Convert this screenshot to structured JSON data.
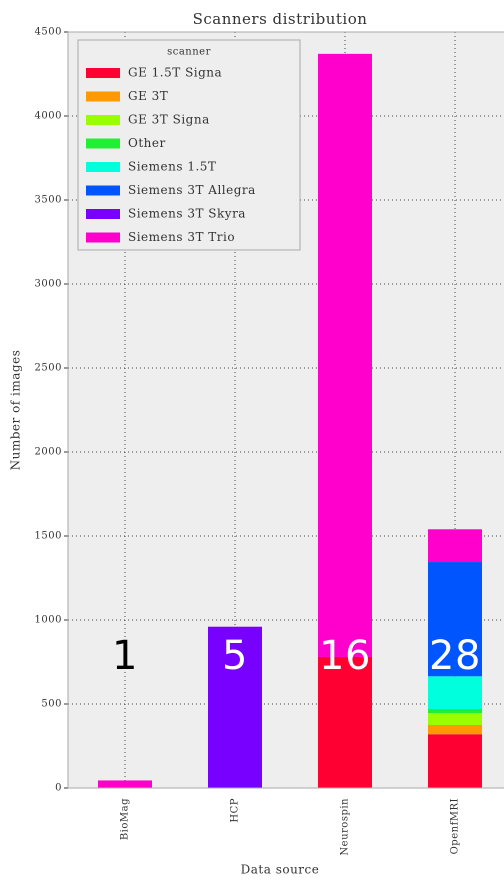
{
  "chart_data": {
    "type": "stacked_bar",
    "title": "Scanners distribution",
    "xlabel": "Data source",
    "ylabel": "Number of images",
    "categories": [
      "BioMag",
      "HCP",
      "Neurospin",
      "OpenfMRI"
    ],
    "legend_title": "scanner",
    "legend": "upper left",
    "grid": true,
    "ylim": [
      0,
      4500
    ],
    "yticks": [
      0,
      500,
      1000,
      1500,
      2000,
      2500,
      3000,
      3500,
      4000,
      4500
    ],
    "series": [
      {
        "name": "GE 1.5T Signa",
        "color": "#ff0033",
        "values": [
          0,
          0,
          780,
          320
        ]
      },
      {
        "name": "GE 3T",
        "color": "#ff9900",
        "values": [
          0,
          0,
          0,
          55
        ]
      },
      {
        "name": "GE 3T Signa",
        "color": "#99ff00",
        "values": [
          0,
          0,
          0,
          70
        ]
      },
      {
        "name": "Other",
        "color": "#22ee33",
        "values": [
          0,
          0,
          0,
          25
        ]
      },
      {
        "name": "Siemens 1.5T",
        "color": "#00ffdd",
        "values": [
          0,
          0,
          0,
          195
        ]
      },
      {
        "name": "Siemens 3T Allegra",
        "color": "#0055ff",
        "values": [
          0,
          0,
          0,
          680
        ]
      },
      {
        "name": "Siemens 3T Skyra",
        "color": "#7700ff",
        "values": [
          0,
          960,
          0,
          0
        ]
      },
      {
        "name": "Siemens 3T Trio",
        "color": "#ff00cc",
        "values": [
          45,
          0,
          3590,
          195
        ]
      }
    ],
    "annotations": [
      {
        "text": "1",
        "color": "#000000"
      },
      {
        "text": "5",
        "color": "#ffffff"
      },
      {
        "text": "16",
        "color": "#ffffff"
      },
      {
        "text": "28",
        "color": "#ffffff"
      }
    ]
  }
}
